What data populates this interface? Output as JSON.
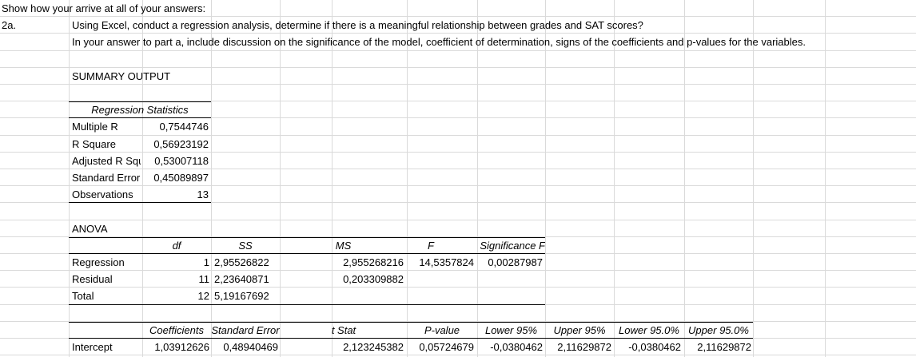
{
  "header": {
    "instruction": "Show how your arrive at all of your answers:",
    "part": "2a.",
    "question": "Using Excel, conduct a regression analysis, determine if there is a meaningful relationship between grades and SAT scores?",
    "guidance": "In your answer to part a, include discussion on the significance of the model, coefficient of determination, signs of the coefficients and p-values for the variables."
  },
  "summary_title": "SUMMARY OUTPUT",
  "regression_statistics": {
    "title": "Regression Statistics",
    "rows": [
      [
        "Multiple R",
        "0,7544746"
      ],
      [
        "R Square",
        "0,56923192"
      ],
      [
        "Adjusted R Square",
        "0,53007118"
      ],
      [
        "Standard Error",
        "0,45089897"
      ],
      [
        "Observations",
        "13"
      ]
    ]
  },
  "anova": {
    "title": "ANOVA",
    "headers": [
      "df",
      "SS",
      "MS",
      "F",
      "Significance F"
    ],
    "rows": [
      [
        "Regression",
        "1",
        "2,95526822",
        "2,955268216",
        "14,5357824",
        "0,00287987"
      ],
      [
        "Residual",
        "11",
        "2,23640871",
        "0,203309882"
      ],
      [
        "Total",
        "12",
        "5,19167692"
      ]
    ]
  },
  "coefficients": {
    "headers": [
      "Coefficients",
      "Standard Error",
      "t Stat",
      "P-value",
      "Lower 95%",
      "Upper 95%",
      "Lower 95.0%",
      "Upper 95.0%"
    ],
    "rows": [
      [
        "Intercept",
        "1,03912626",
        "0,48940469",
        "2,123245382",
        "0,05724679",
        "-0,0380462",
        "2,11629872",
        "-0,0380462",
        "2,11629872"
      ]
    ]
  }
}
